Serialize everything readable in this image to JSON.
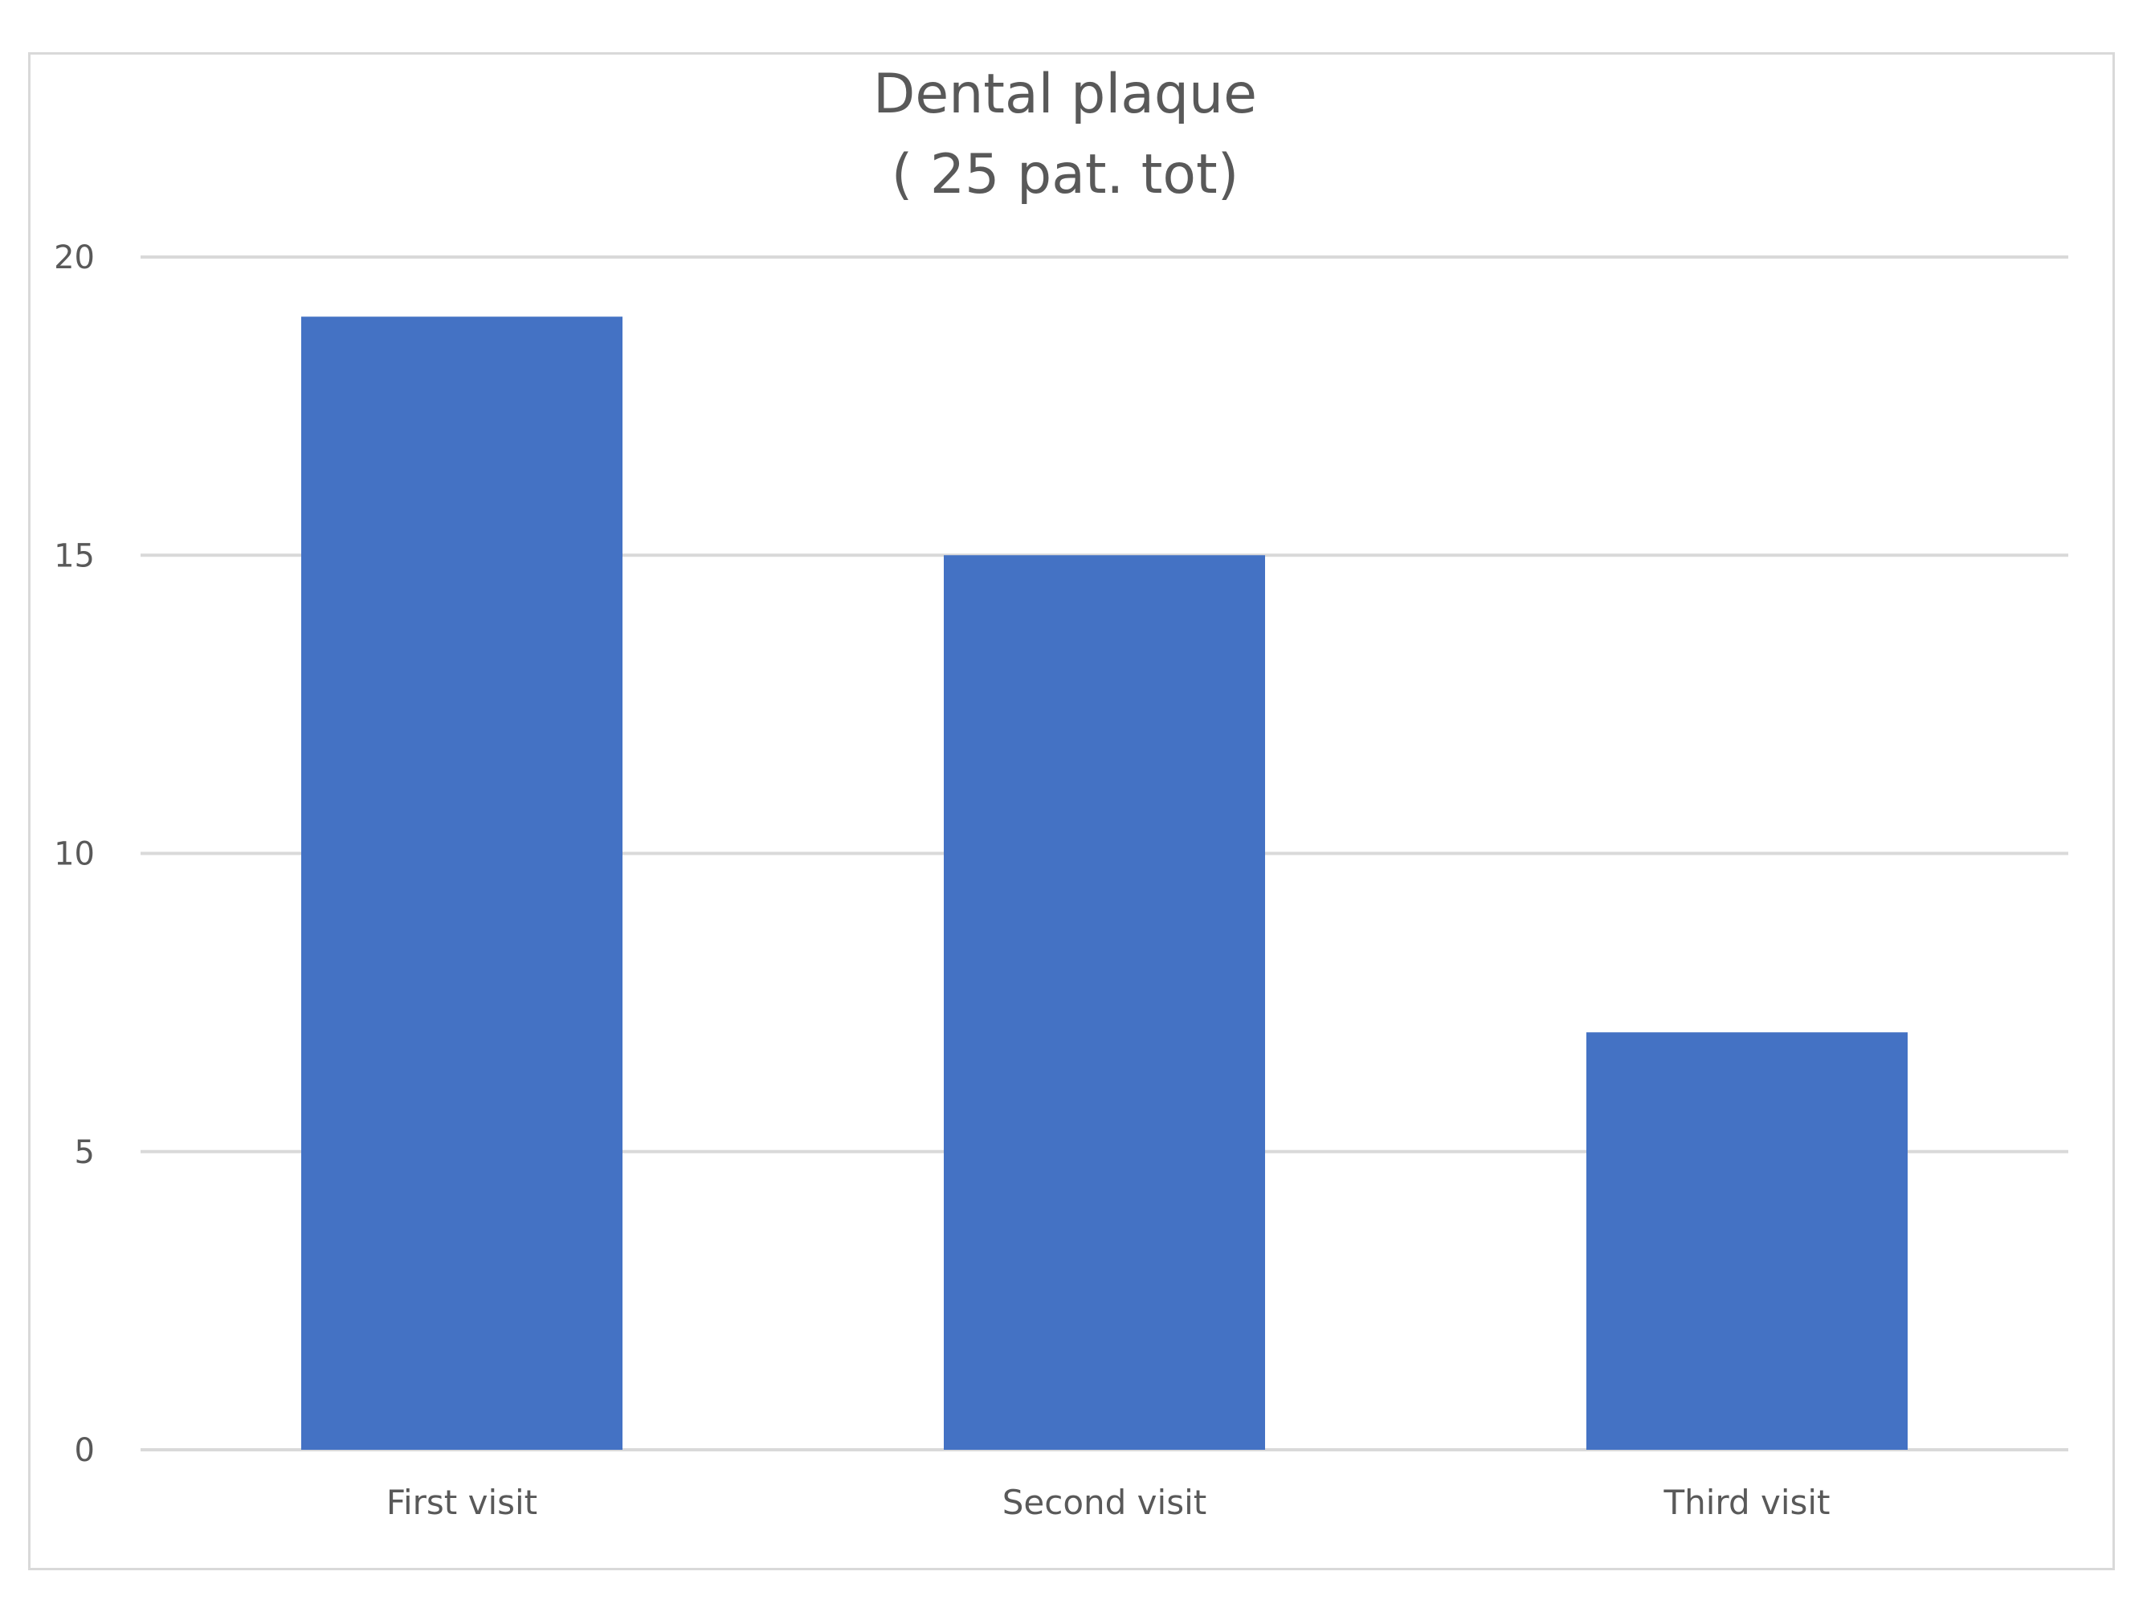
{
  "chart_data": {
    "type": "bar",
    "title": "Dental plaque",
    "subtitle": "( 25 pat. tot)",
    "categories": [
      "First visit",
      "Second visit",
      "Third visit"
    ],
    "values": [
      19,
      15,
      7
    ],
    "ylim": [
      0,
      20
    ],
    "yticks": [
      "0",
      "5",
      "10",
      "15",
      "20"
    ],
    "xlabel": "",
    "ylabel": "",
    "grid": true,
    "legend": "none",
    "bar_color": "#4472c4",
    "grid_color": "#d9d9d9"
  }
}
